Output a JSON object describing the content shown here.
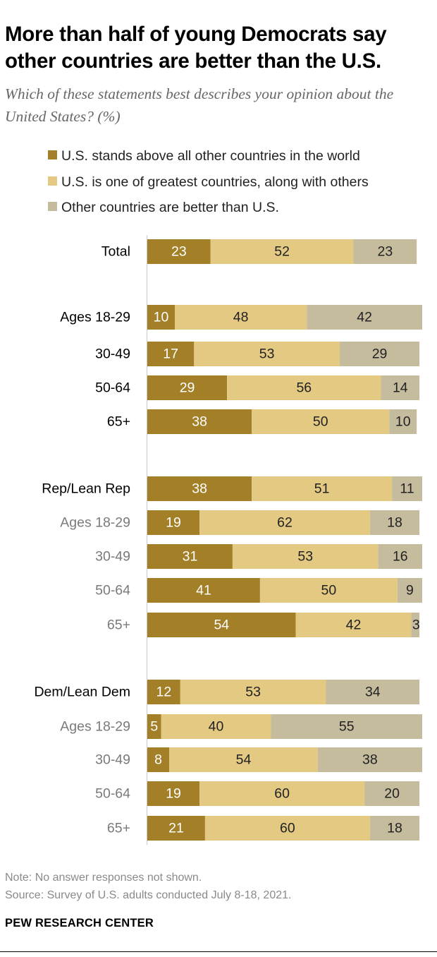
{
  "title": "More than half of young Democrats say other countries are better than the U.S.",
  "subtitle": "Which of these statements best describes your opinion about the United States? (%)",
  "legend": [
    {
      "label": "U.S. stands above all other countries in the world",
      "color": "#a37f27"
    },
    {
      "label": "U.S. is one of greatest countries, along with others",
      "color": "#e3c982"
    },
    {
      "label": "Other countries are better than U.S.",
      "color": "#c5bc9e"
    }
  ],
  "chart_data": {
    "type": "bar",
    "orientation": "horizontal",
    "stacked": true,
    "xlim": [
      0,
      100
    ],
    "series": [
      {
        "name": "U.S. stands above all other countries in the world",
        "color": "#a37f27"
      },
      {
        "name": "U.S. is one of greatest countries, along with others",
        "color": "#e3c982"
      },
      {
        "name": "Other countries are better than U.S.",
        "color": "#c5bc9e"
      }
    ],
    "rows": [
      {
        "label": "Total",
        "style": "main",
        "values": [
          23,
          52,
          23
        ]
      },
      {
        "label": "Ages 18-29",
        "style": "main",
        "values": [
          10,
          48,
          42
        ]
      },
      {
        "label": "30-49",
        "style": "main",
        "values": [
          17,
          53,
          29
        ]
      },
      {
        "label": "50-64",
        "style": "main",
        "values": [
          29,
          56,
          14
        ]
      },
      {
        "label": "65+",
        "style": "main",
        "values": [
          38,
          50,
          10
        ]
      },
      {
        "label": "Rep/Lean Rep",
        "style": "main",
        "values": [
          38,
          51,
          11
        ]
      },
      {
        "label": "Ages 18-29",
        "style": "sub",
        "values": [
          19,
          62,
          18
        ]
      },
      {
        "label": "30-49",
        "style": "sub",
        "values": [
          31,
          53,
          16
        ]
      },
      {
        "label": "50-64",
        "style": "sub",
        "values": [
          41,
          50,
          9
        ]
      },
      {
        "label": "65+",
        "style": "sub",
        "values": [
          54,
          42,
          3
        ]
      },
      {
        "label": "Dem/Lean Dem",
        "style": "main",
        "values": [
          12,
          53,
          34
        ]
      },
      {
        "label": "Ages 18-29",
        "style": "sub",
        "values": [
          5,
          40,
          55
        ]
      },
      {
        "label": "30-49",
        "style": "sub",
        "values": [
          8,
          54,
          38
        ]
      },
      {
        "label": "50-64",
        "style": "sub",
        "values": [
          19,
          60,
          20
        ]
      },
      {
        "label": "65+",
        "style": "sub",
        "values": [
          21,
          60,
          18
        ]
      }
    ]
  },
  "footer": {
    "note": "Note: No answer responses not shown.",
    "source": "Source: Survey of U.S. adults conducted July 8-18, 2021.",
    "brand": "PEW RESEARCH CENTER"
  }
}
